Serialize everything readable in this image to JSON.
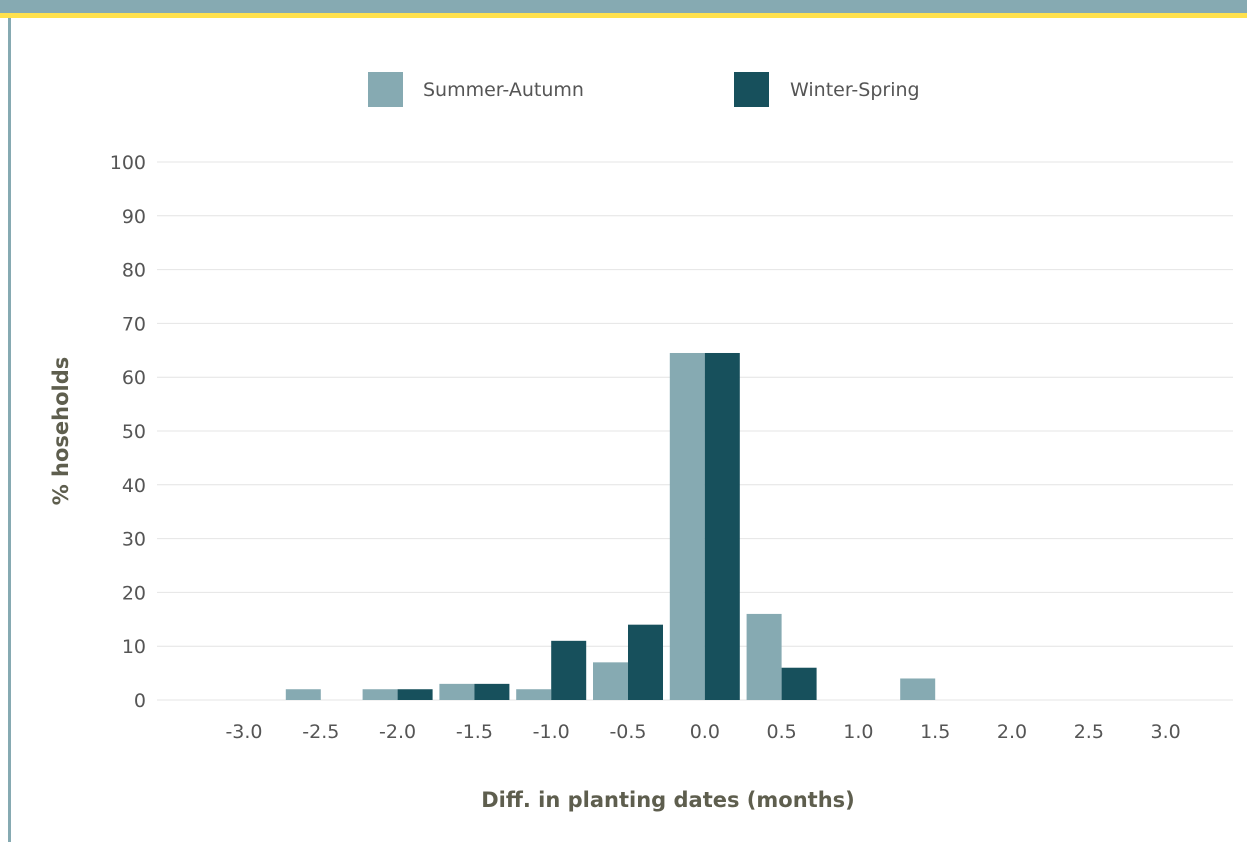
{
  "colors": {
    "header": "#86aab2",
    "accent_line": "#ffe14d",
    "summer_autumn": "#86aab2",
    "winter_spring": "#17505c",
    "gridline": "#e4e4e4",
    "tick_text": "#555555",
    "axis_title": "#5e5e4e"
  },
  "chart_data": {
    "type": "bar",
    "title": "",
    "xlabel": "Diff. in planting dates (months)",
    "ylabel": "% hoseholds",
    "categories": [
      "-3.0",
      "-2.5",
      "-2.0",
      "-1.5",
      "-1.0",
      "-0.5",
      "0.0",
      "0.5",
      "1.0",
      "1.5",
      "2.0",
      "2.5",
      "3.0"
    ],
    "series": [
      {
        "name": "Summer-Autumn",
        "values": [
          0,
          2,
          2,
          3,
          2,
          7,
          64.5,
          16,
          0,
          4,
          0,
          0,
          0
        ]
      },
      {
        "name": "Winter-Spring",
        "values": [
          0,
          0,
          2,
          3,
          11,
          14,
          64.5,
          6,
          0,
          0,
          0,
          0,
          0
        ]
      }
    ],
    "ylim": [
      0,
      100
    ],
    "yticks": [
      "0",
      "10",
      "20",
      "30",
      "40",
      "50",
      "60",
      "70",
      "80",
      "90",
      "100"
    ],
    "grid": true,
    "legend_position": "top-center"
  }
}
